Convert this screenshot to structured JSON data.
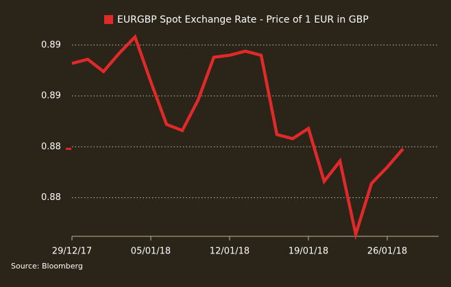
{
  "chart_data": {
    "type": "line",
    "source": "Source: Bloomberg",
    "categories": [
      "29/12/17",
      null,
      null,
      null,
      null,
      "05/01/18",
      null,
      null,
      null,
      null,
      "12/01/18",
      null,
      null,
      null,
      null,
      "19/01/18",
      null,
      null,
      null,
      null,
      "26/01/18",
      null
    ],
    "series": [
      {
        "name": "EURGBP Spot Exchange Rate - Price of 1 EUR in GBP",
        "color": "#e02a2a",
        "values": [
          0.8866,
          0.8868,
          0.8862,
          0.8871,
          0.8879,
          0.8857,
          0.8836,
          0.8833,
          0.8848,
          0.8869,
          0.887,
          0.8872,
          0.887,
          0.8831,
          0.8829,
          0.8834,
          0.8808,
          0.8818,
          0.8782,
          0.8807,
          0.8815,
          0.8824
        ]
      }
    ],
    "ylim": [
      0.8781,
      0.8882
    ],
    "yticks": [
      {
        "value": 0.88,
        "label": "0.88"
      },
      {
        "value": 0.8825,
        "label": "0.88"
      },
      {
        "value": 0.885,
        "label": "0.89"
      },
      {
        "value": 0.8875,
        "label": "0.89"
      }
    ],
    "grid": true
  }
}
